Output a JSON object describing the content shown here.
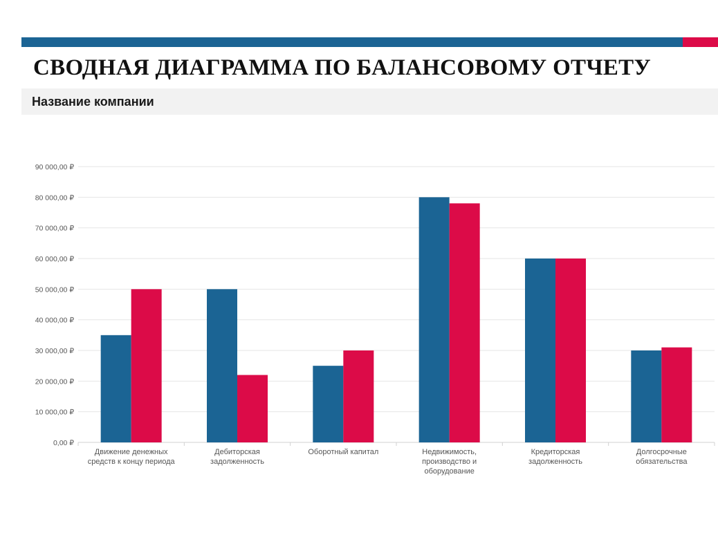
{
  "header": {
    "title": "СВОДНАЯ ДИАГРАММА ПО БАЛАНСОВОМУ ОТЧЕТУ",
    "subtitle": "Название компании",
    "bar_color": "#1b6494",
    "accent_color": "#dc0b48"
  },
  "chart_data": {
    "type": "bar",
    "categories": [
      [
        "Движение денежных",
        "средств к концу периода"
      ],
      [
        "Дебиторская",
        "задолженность"
      ],
      [
        "Оборотный капитал"
      ],
      [
        "Недвижимость,",
        "производство и",
        "оборудование"
      ],
      [
        "Кредиторская",
        "задолженность"
      ],
      [
        "Долгосрочные",
        "обязательства"
      ]
    ],
    "series": [
      {
        "color": "#1b6494",
        "values": [
          35000,
          50000,
          25000,
          80000,
          60000,
          30000
        ]
      },
      {
        "color": "#dc0b48",
        "values": [
          50000,
          22000,
          30000,
          78000,
          60000,
          31000
        ]
      }
    ],
    "ylim": [
      0,
      90000
    ],
    "yticks": [
      0,
      10000,
      20000,
      30000,
      40000,
      50000,
      60000,
      70000,
      80000,
      90000
    ],
    "ytick_labels": [
      "0,00 ₽",
      "10 000,00 ₽",
      "20 000,00 ₽",
      "30 000,00 ₽",
      "40 000,00 ₽",
      "50 000,00 ₽",
      "60 000,00 ₽",
      "70 000,00 ₽",
      "80 000,00 ₽",
      "90 000,00 ₽"
    ],
    "grid": true,
    "legend": "none"
  }
}
